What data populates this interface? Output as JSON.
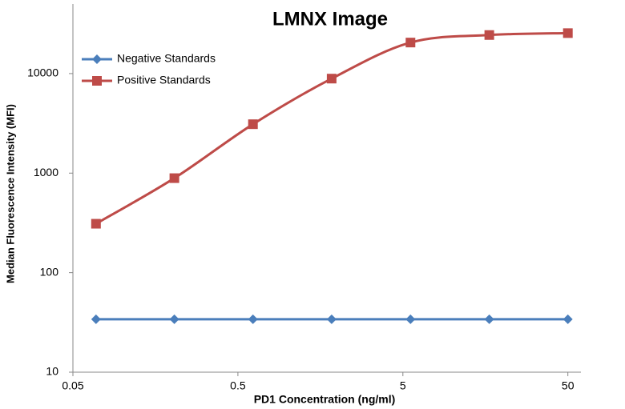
{
  "chart_data": {
    "type": "line",
    "title": "LMNX Image",
    "x_label": "PD1 Concentration  (ng/ml)",
    "y_label": "Median Fluorescence Intensity (MFI)",
    "x": [
      0.069,
      0.206,
      0.617,
      1.85,
      5.56,
      16.7,
      50
    ],
    "series": [
      {
        "name": "Negative Standards",
        "color": "#4a7ebb",
        "marker": "diamond",
        "values": [
          34,
          34,
          34,
          34,
          34,
          34,
          34
        ]
      },
      {
        "name": "Positive Standards",
        "color": "#be4b48",
        "marker": "square",
        "values": [
          310,
          890,
          3100,
          8900,
          20500,
          24400,
          25500
        ]
      }
    ],
    "x_log": true,
    "y_log": true,
    "xlim": [
      0.05,
      60
    ],
    "ylim": [
      10,
      50000
    ],
    "xticks": [
      0.05,
      0.5,
      5,
      50
    ],
    "yticks": [
      10,
      100,
      1000,
      10000
    ],
    "grid": false,
    "legend": "upper left"
  }
}
